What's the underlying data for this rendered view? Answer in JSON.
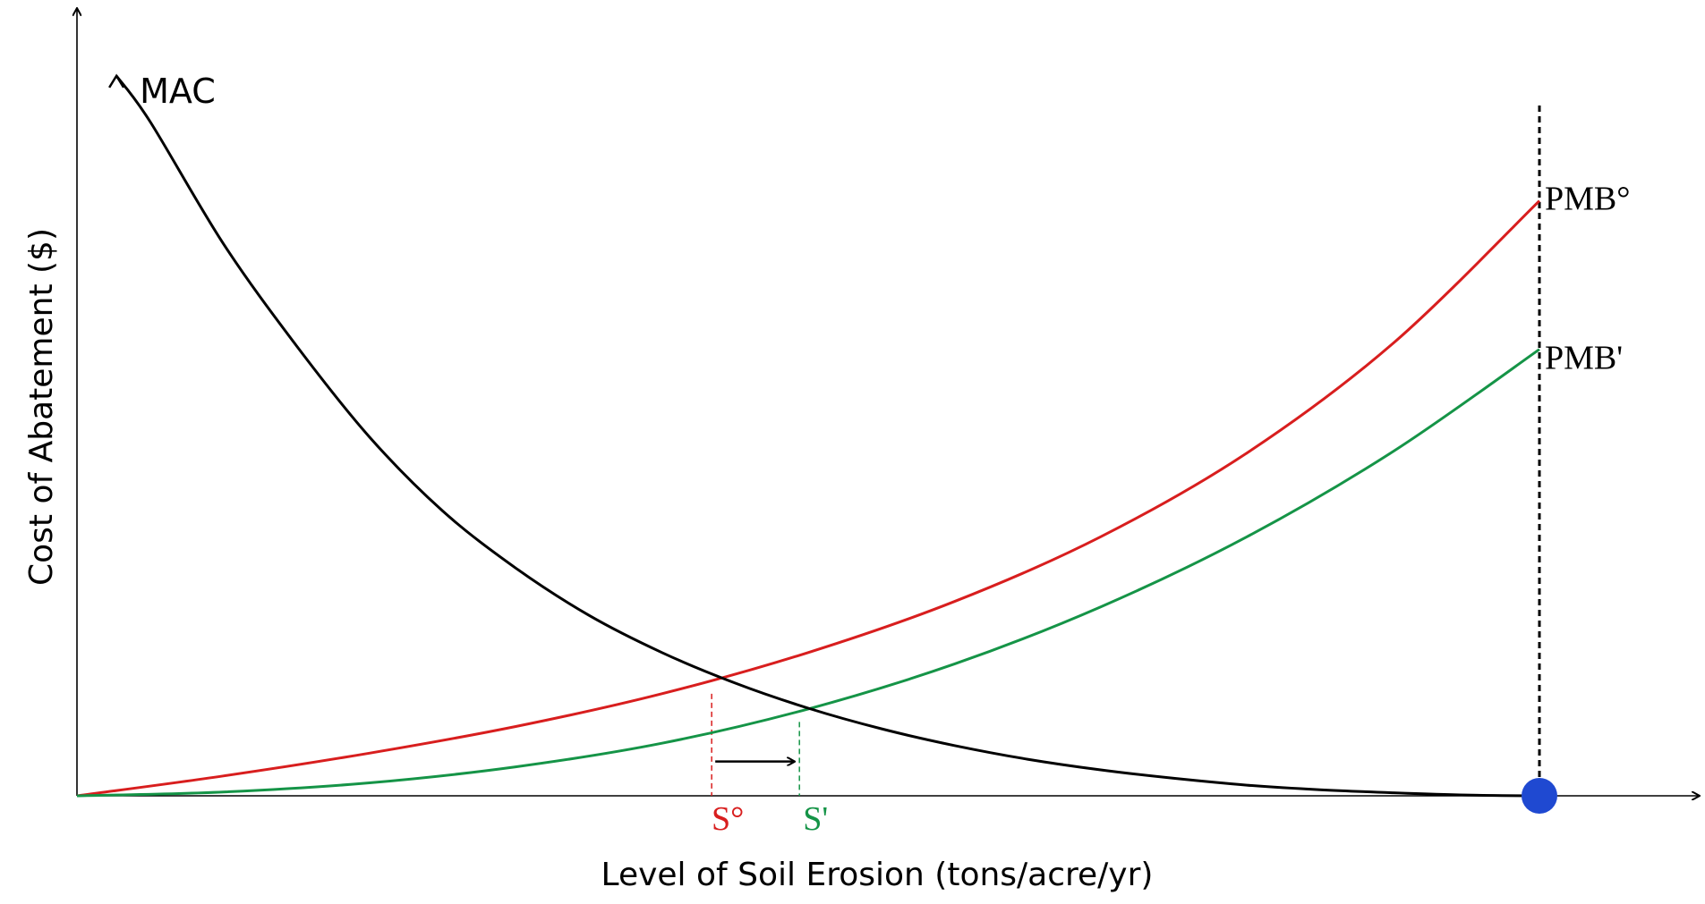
{
  "chart_data": {
    "type": "line",
    "xlabel": "Level of Soil Erosion (tons/acre/yr)",
    "ylabel": "Cost of Abatement ($)",
    "xlim": [
      0,
      100
    ],
    "ylim": [
      0,
      100
    ],
    "grid": false,
    "legend": "none",
    "series": [
      {
        "name": "MAC",
        "color": "#000000",
        "x": [
          2.7,
          5,
          10,
          15,
          20,
          25,
          30,
          35,
          40,
          45,
          50,
          55,
          60,
          65,
          70,
          75,
          80,
          85,
          90,
          95,
          100
        ],
        "y": [
          94.5,
          88.5,
          72.5,
          59.1,
          47.1,
          37.4,
          29.9,
          23.7,
          18.8,
          14.8,
          11.5,
          8.8,
          6.6,
          4.8,
          3.4,
          2.3,
          1.4,
          0.8,
          0.4,
          0.1,
          0
        ]
      },
      {
        "name": "PMB°",
        "color": "#d81e1e",
        "x": [
          0,
          10,
          20,
          30,
          40,
          50,
          60,
          70,
          80,
          90,
          100
        ],
        "y": [
          0,
          2.6,
          5.6,
          9.1,
          13.4,
          18.8,
          25.5,
          34.0,
          45.0,
          59.4,
          78.1
        ]
      },
      {
        "name": "PMB'",
        "color": "#159447",
        "x": [
          0,
          10,
          20,
          30,
          40,
          50,
          60,
          70,
          80,
          90,
          100
        ],
        "y": [
          0,
          0.5,
          1.7,
          3.8,
          6.9,
          11.4,
          17.3,
          24.8,
          34.0,
          45.2,
          58.6
        ]
      }
    ],
    "markers": [
      {
        "label": "S°",
        "x": 43.4,
        "y": 13.4,
        "color": "#d81e1e"
      },
      {
        "label": "S'",
        "x": 49.4,
        "y": 9.7,
        "color": "#159447"
      }
    ],
    "vertical_line_x": 100,
    "point": {
      "x": 100,
      "y": 0,
      "color": "#1f49d1"
    },
    "shift_arrow": {
      "from_x": 43.4,
      "to_x": 49.4,
      "y": 4.5
    }
  }
}
